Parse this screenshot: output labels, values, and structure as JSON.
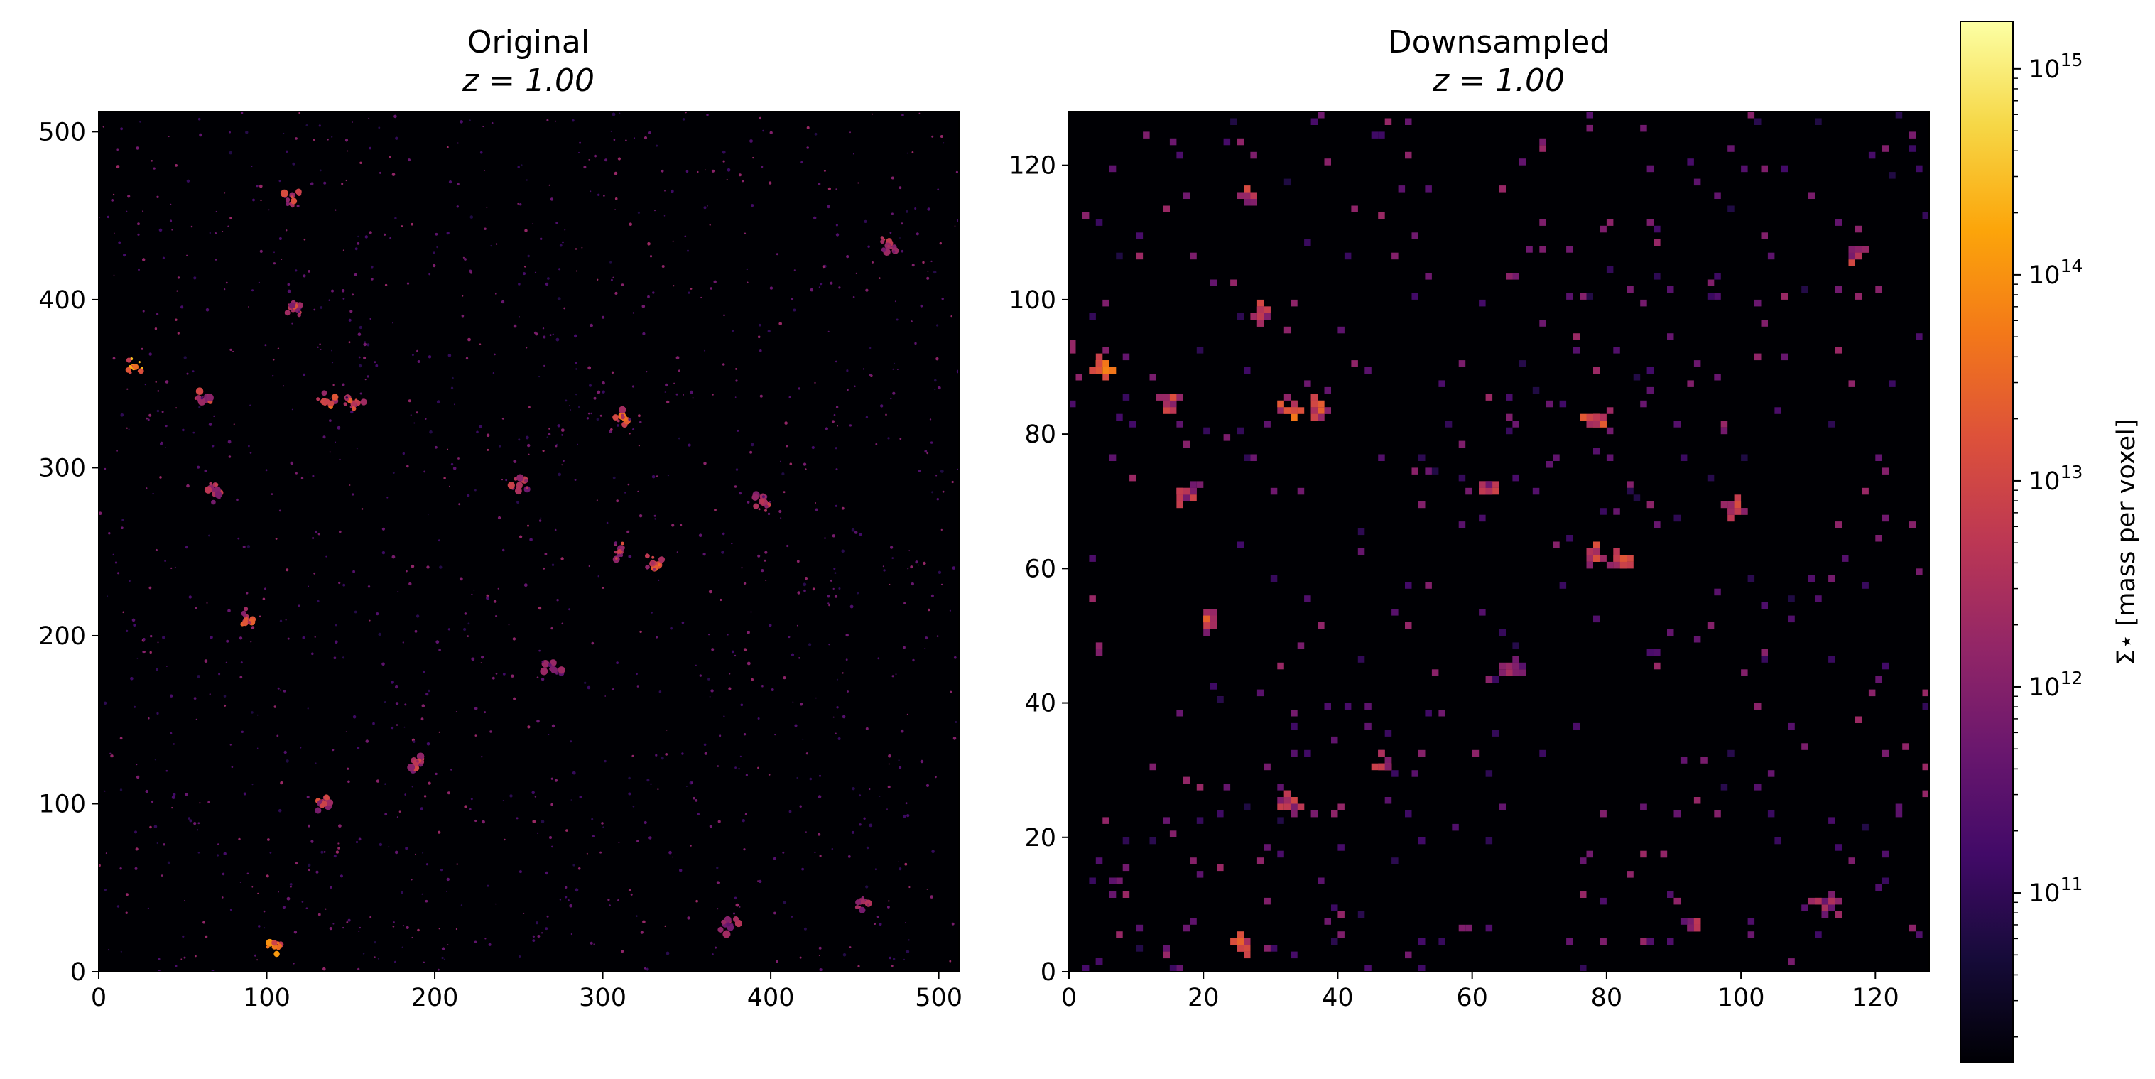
{
  "chart_data": [
    {
      "type": "heatmap",
      "title": "Original",
      "subtitle": "z = 1.00",
      "xlabel": "",
      "ylabel": "",
      "xlim": [
        0,
        512
      ],
      "ylim": [
        0,
        512
      ],
      "x_ticks": [
        "0",
        "100",
        "200",
        "300",
        "400",
        "500"
      ],
      "y_ticks": [
        "0",
        "100",
        "200",
        "300",
        "400",
        "500"
      ],
      "grid": false,
      "colormap": "inferno",
      "log_scale": true,
      "background_color": "#000004",
      "bright_regions": [
        {
          "x": 20,
          "y": 360,
          "intensity": 0.85
        },
        {
          "x": 105,
          "y": 15,
          "intensity": 0.8
        },
        {
          "x": 312,
          "y": 330,
          "intensity": 0.75
        },
        {
          "x": 135,
          "y": 340,
          "intensity": 0.7
        },
        {
          "x": 152,
          "y": 338,
          "intensity": 0.65
        },
        {
          "x": 115,
          "y": 462,
          "intensity": 0.6
        },
        {
          "x": 115,
          "y": 395,
          "intensity": 0.6
        },
        {
          "x": 88,
          "y": 210,
          "intensity": 0.65
        },
        {
          "x": 62,
          "y": 340,
          "intensity": 0.6
        },
        {
          "x": 68,
          "y": 285,
          "intensity": 0.55
        },
        {
          "x": 250,
          "y": 290,
          "intensity": 0.55
        },
        {
          "x": 330,
          "y": 243,
          "intensity": 0.7
        },
        {
          "x": 310,
          "y": 250,
          "intensity": 0.6
        },
        {
          "x": 395,
          "y": 280,
          "intensity": 0.6
        },
        {
          "x": 470,
          "y": 432,
          "intensity": 0.6
        },
        {
          "x": 190,
          "y": 125,
          "intensity": 0.6
        },
        {
          "x": 135,
          "y": 100,
          "intensity": 0.6
        },
        {
          "x": 455,
          "y": 42,
          "intensity": 0.5
        },
        {
          "x": 375,
          "y": 28,
          "intensity": 0.5
        },
        {
          "x": 270,
          "y": 180,
          "intensity": 0.45
        }
      ]
    },
    {
      "type": "heatmap",
      "title": "Downsampled",
      "subtitle": "z = 1.00",
      "xlabel": "",
      "ylabel": "",
      "xlim": [
        0,
        128
      ],
      "ylim": [
        0,
        128
      ],
      "x_ticks": [
        "0",
        "20",
        "40",
        "60",
        "80",
        "100",
        "120"
      ],
      "y_ticks": [
        "0",
        "20",
        "40",
        "60",
        "80",
        "100",
        "120"
      ],
      "grid": false,
      "colormap": "inferno",
      "log_scale": true,
      "background_color": "#000004",
      "bright_regions": [
        {
          "x": 5,
          "y": 90,
          "intensity": 0.85
        },
        {
          "x": 26,
          "y": 4,
          "intensity": 0.8
        },
        {
          "x": 78,
          "y": 82,
          "intensity": 0.75
        },
        {
          "x": 33,
          "y": 84,
          "intensity": 0.7
        },
        {
          "x": 37,
          "y": 84,
          "intensity": 0.65
        },
        {
          "x": 27,
          "y": 115,
          "intensity": 0.6
        },
        {
          "x": 29,
          "y": 98,
          "intensity": 0.6
        },
        {
          "x": 21,
          "y": 52,
          "intensity": 0.65
        },
        {
          "x": 15,
          "y": 85,
          "intensity": 0.6
        },
        {
          "x": 17,
          "y": 71,
          "intensity": 0.55
        },
        {
          "x": 62,
          "y": 72,
          "intensity": 0.55
        },
        {
          "x": 82,
          "y": 61,
          "intensity": 0.7
        },
        {
          "x": 78,
          "y": 62,
          "intensity": 0.6
        },
        {
          "x": 99,
          "y": 69,
          "intensity": 0.6
        },
        {
          "x": 117,
          "y": 107,
          "intensity": 0.6
        },
        {
          "x": 47,
          "y": 31,
          "intensity": 0.6
        },
        {
          "x": 33,
          "y": 25,
          "intensity": 0.6
        },
        {
          "x": 113,
          "y": 10,
          "intensity": 0.5
        },
        {
          "x": 93,
          "y": 7,
          "intensity": 0.5
        },
        {
          "x": 66,
          "y": 45,
          "intensity": 0.45
        }
      ]
    }
  ],
  "colorbar": {
    "label": "Σ⋆ [mass per voxel]",
    "colormap": "inferno",
    "scale": "log",
    "range": [
      15000000000.0,
      1700000000000000.0
    ],
    "ticks": [
      {
        "value": 100000000000.0,
        "base": "10",
        "exp": "11"
      },
      {
        "value": 1000000000000.0,
        "base": "10",
        "exp": "12"
      },
      {
        "value": 10000000000000.0,
        "base": "10",
        "exp": "13"
      },
      {
        "value": 100000000000000.0,
        "base": "10",
        "exp": "14"
      },
      {
        "value": 1000000000000000.0,
        "base": "10",
        "exp": "15"
      }
    ]
  }
}
